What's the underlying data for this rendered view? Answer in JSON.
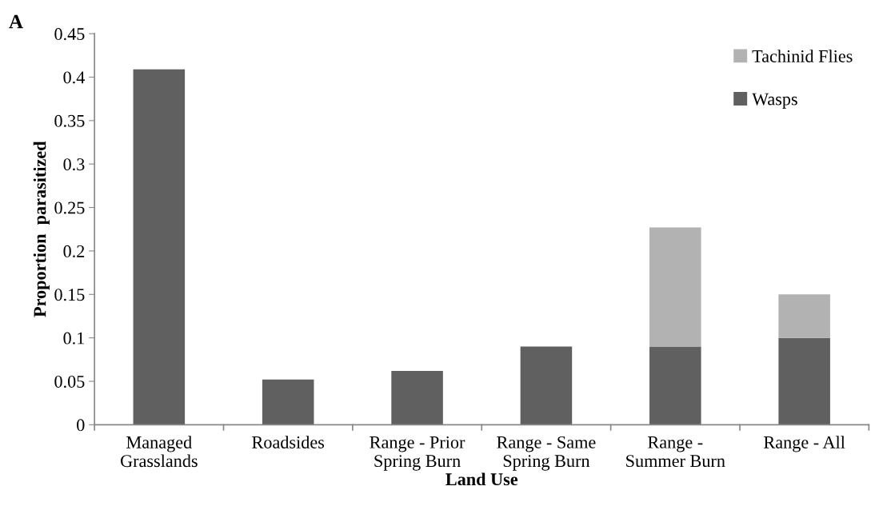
{
  "chart_data": {
    "type": "bar",
    "stacked": true,
    "xlabel": "Land Use",
    "ylabel": "Proportion  parasitized",
    "annotations": [
      "A"
    ],
    "categories": [
      "Managed\nGrasslands",
      "Roadsides",
      "Range - Prior\nSpring Burn",
      "Range - Same\nSpring Burn",
      "Range -\nSummer Burn",
      "Range - All"
    ],
    "series": [
      {
        "name": "Wasps",
        "color": "#606060",
        "values": [
          0.409,
          0.052,
          0.062,
          0.09,
          0.09,
          0.1
        ]
      },
      {
        "name": "Tachinid Flies",
        "color": "#b2b2b2",
        "values": [
          0,
          0,
          0,
          0,
          0.137,
          0.05
        ]
      }
    ],
    "ylim": [
      0,
      0.45
    ],
    "yticks": [
      0,
      0.05,
      0.1,
      0.15,
      0.2,
      0.25,
      0.3,
      0.35,
      0.4,
      0.45
    ],
    "grid": false,
    "legend": "top right"
  }
}
